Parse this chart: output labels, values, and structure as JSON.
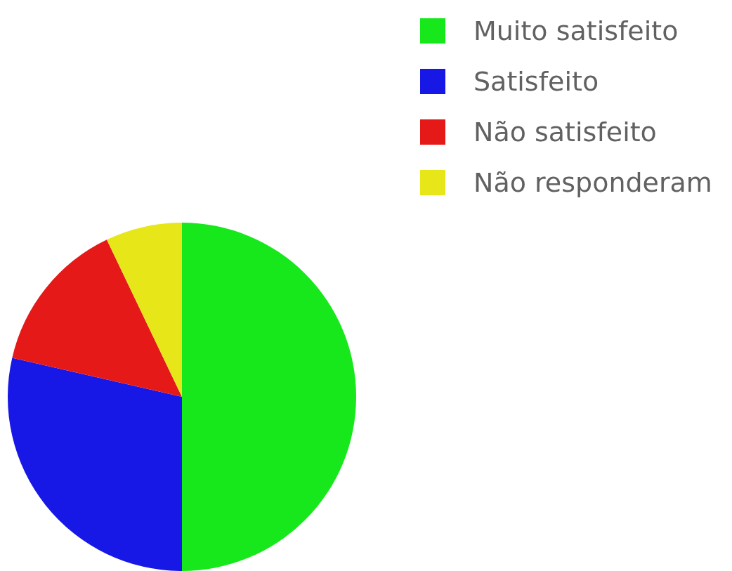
{
  "chart_data": {
    "type": "pie",
    "categories": [
      "Muito satisfeito",
      "Satisfeito",
      "Não satisfeito",
      "Não responderam"
    ],
    "values": [
      50,
      28.6,
      14.3,
      7.1
    ],
    "colors": [
      "#17e81c",
      "#1818e6",
      "#e61919",
      "#e6e619"
    ],
    "legend": "top right"
  }
}
